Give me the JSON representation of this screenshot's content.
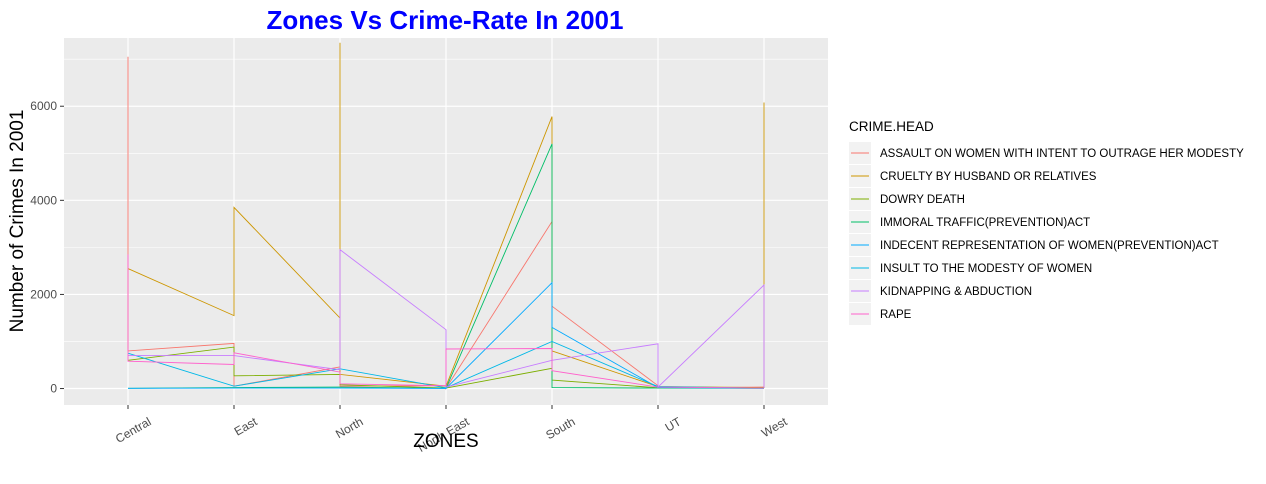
{
  "chart_data": {
    "type": "line",
    "title": "Zones Vs Crime-Rate In 2001",
    "xlabel": "ZONES",
    "ylabel": "Number of Crimes In 2001",
    "categories": [
      "Central",
      "East",
      "North",
      "North East",
      "South",
      "UT",
      "West"
    ],
    "ylim": [
      -350,
      7450
    ],
    "yticks": [
      0,
      2000,
      4000,
      6000
    ],
    "grid": true,
    "legend": {
      "title": "CRIME.HEAD",
      "placement": "right"
    },
    "series": [
      {
        "name": "ASSAULT ON WOMEN WITH INTENT TO OUTRAGE HER MODESTY",
        "color": "#F8766D",
        "points": [
          [
            0,
            7050
          ],
          [
            0,
            800
          ],
          [
            1,
            960
          ],
          [
            1,
            50
          ],
          [
            2,
            460
          ],
          [
            2,
            50
          ],
          [
            3,
            60
          ],
          [
            3,
            5
          ],
          [
            4,
            3550
          ],
          [
            4,
            1750
          ],
          [
            5,
            60
          ],
          [
            5,
            10
          ],
          [
            6,
            30
          ]
        ]
      },
      {
        "name": "CRUELTY BY HUSBAND OR RELATIVES",
        "color": "#CD9600",
        "points": [
          [
            0,
            850
          ],
          [
            0,
            2550
          ],
          [
            1,
            1550
          ],
          [
            1,
            3850
          ],
          [
            2,
            1500
          ],
          [
            2,
            7350
          ],
          [
            2,
            300
          ],
          [
            3,
            50
          ],
          [
            4,
            5780
          ],
          [
            4,
            800
          ],
          [
            5,
            40
          ],
          [
            6,
            20
          ],
          [
            6,
            6080
          ],
          [
            6,
            2100
          ]
        ]
      },
      {
        "name": "DOWRY DEATH",
        "color": "#7CAE00",
        "points": [
          [
            0,
            600
          ],
          [
            1,
            880
          ],
          [
            1,
            270
          ],
          [
            2,
            300
          ],
          [
            2,
            80
          ],
          [
            3,
            10
          ],
          [
            4,
            430
          ],
          [
            4,
            180
          ],
          [
            5,
            15
          ],
          [
            6,
            10
          ]
        ]
      },
      {
        "name": "IMMORAL TRAFFIC(PREVENTION)ACT",
        "color": "#00BE67",
        "points": [
          [
            0,
            5
          ],
          [
            1,
            20
          ],
          [
            2,
            30
          ],
          [
            3,
            5
          ],
          [
            4,
            5200
          ],
          [
            4,
            20
          ],
          [
            5,
            10
          ],
          [
            6,
            5
          ]
        ]
      },
      {
        "name": "INDECENT REPRESENTATION OF WOMEN(PREVENTION)ACT",
        "color": "#00A9FF",
        "points": [
          [
            0,
            5
          ],
          [
            1,
            10
          ],
          [
            2,
            10
          ],
          [
            3,
            3
          ],
          [
            4,
            2250
          ],
          [
            4,
            1300
          ],
          [
            5,
            20
          ],
          [
            6,
            5
          ]
        ]
      },
      {
        "name": "INSULT TO THE MODESTY OF WOMEN",
        "color": "#00B8E7",
        "points": [
          [
            0,
            750
          ],
          [
            1,
            50
          ],
          [
            2,
            420
          ],
          [
            3,
            15
          ],
          [
            4,
            1000
          ],
          [
            5,
            40
          ],
          [
            6,
            10
          ]
        ]
      },
      {
        "name": "KIDNAPPING & ABDUCTION",
        "color": "#C77CFF",
        "points": [
          [
            0,
            700
          ],
          [
            1,
            700
          ],
          [
            2,
            400
          ],
          [
            2,
            2950
          ],
          [
            3,
            1250
          ],
          [
            3,
            30
          ],
          [
            4,
            600
          ],
          [
            5,
            950
          ],
          [
            5,
            30
          ],
          [
            6,
            2200
          ],
          [
            6,
            20
          ]
        ]
      },
      {
        "name": "RAPE",
        "color": "#FF61CC",
        "points": [
          [
            0,
            2850
          ],
          [
            0,
            580
          ],
          [
            1,
            510
          ],
          [
            1,
            760
          ],
          [
            2,
            350
          ],
          [
            2,
            100
          ],
          [
            3,
            60
          ],
          [
            3,
            840
          ],
          [
            4,
            850
          ],
          [
            4,
            380
          ],
          [
            5,
            30
          ],
          [
            6,
            10
          ]
        ]
      }
    ]
  }
}
